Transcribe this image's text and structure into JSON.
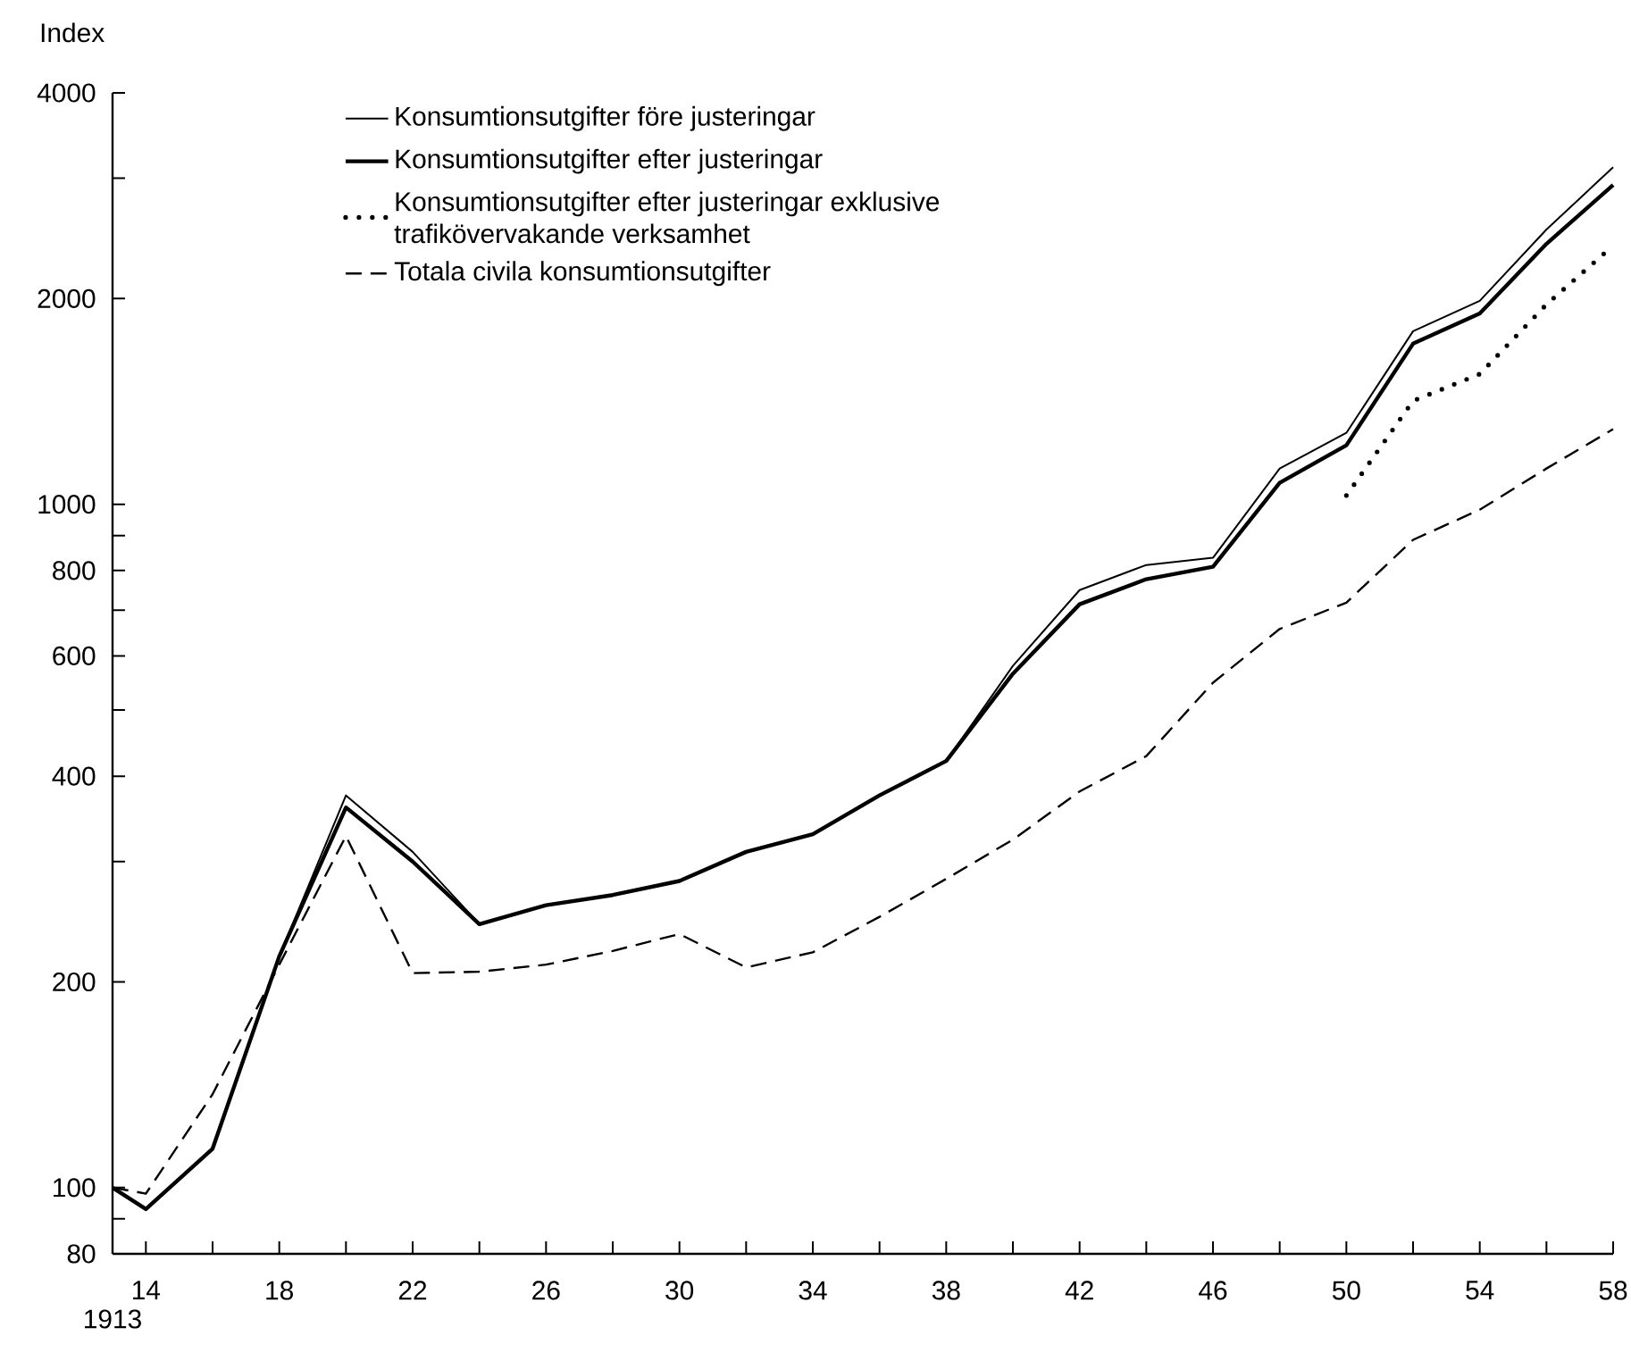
{
  "chart_data": {
    "type": "line",
    "ylabel": "Index",
    "log": "y",
    "legend": "top left",
    "line_style": "solid",
    "x": [
      1913,
      1914,
      1916,
      1918,
      1920,
      1922,
      1924,
      1926,
      1928,
      1930,
      1932,
      1934,
      1936,
      1938,
      1940,
      1942,
      1944,
      1946,
      1948,
      1950,
      1952,
      1954,
      1956,
      1958
    ],
    "xlim": [
      1913,
      1958
    ],
    "ylim": [
      80,
      4000
    ],
    "annotations": [
      "1913"
    ],
    "xticks": [
      {
        "value": 1913,
        "label": null
      },
      {
        "value": 1914,
        "label": "14"
      },
      {
        "value": 1916,
        "label": null
      },
      {
        "value": 1918,
        "label": "18"
      },
      {
        "value": 1920,
        "label": null
      },
      {
        "value": 1922,
        "label": "22"
      },
      {
        "value": 1924,
        "label": null
      },
      {
        "value": 1926,
        "label": "26"
      },
      {
        "value": 1928,
        "label": null
      },
      {
        "value": 1930,
        "label": "30"
      },
      {
        "value": 1932,
        "label": null
      },
      {
        "value": 1934,
        "label": "34"
      },
      {
        "value": 1936,
        "label": null
      },
      {
        "value": 1938,
        "label": "38"
      },
      {
        "value": 1940,
        "label": null
      },
      {
        "value": 1942,
        "label": "42"
      },
      {
        "value": 1944,
        "label": null
      },
      {
        "value": 1946,
        "label": "46"
      },
      {
        "value": 1948,
        "label": null
      },
      {
        "value": 1950,
        "label": "50"
      },
      {
        "value": 1952,
        "label": null
      },
      {
        "value": 1954,
        "label": "54"
      },
      {
        "value": 1956,
        "label": null
      },
      {
        "value": 1958,
        "label": "58"
      }
    ],
    "yticks": [
      80,
      {
        "value": 90,
        "label": null
      },
      100,
      200,
      {
        "value": 300,
        "label": null
      },
      400,
      {
        "value": 500,
        "label": null
      },
      600,
      {
        "value": 700,
        "label": null
      },
      800,
      {
        "value": 900,
        "label": null
      },
      1000,
      2000,
      {
        "value": 3000,
        "label": null
      },
      4000
    ],
    "series": [
      {
        "name": "Konsumtionsutgifter före justeringar",
        "color": "#000000",
        "values": [
          100,
          93,
          114,
          218,
          375,
          310,
          243,
          259,
          268,
          281,
          310,
          329,
          375,
          421,
          580,
          749,
          815,
          835,
          1128,
          1272,
          1792,
          1985,
          2524,
          3114
        ]
      },
      {
        "name": "Konsumtionsutgifter efter justeringar",
        "color": "#000000",
        "values": [
          100,
          93,
          114,
          218,
          360,
          300,
          243,
          259,
          268,
          281,
          310,
          329,
          375,
          421,
          565,
          714,
          777,
          810,
          1075,
          1220,
          1718,
          1902,
          2405,
          2933
        ]
      },
      {
        "name": "Konsumtionsutgifter efter justeringar exklusive trafikövervakande verksamhet",
        "color": "#000000",
        "line_style": "dotted",
        "x": [
          1950,
          1952,
          1954,
          1956,
          1958
        ],
        "values": [
          1030,
          1417,
          1551,
          1961,
          2391
        ]
      },
      {
        "name": "Totala civila konsumtionsutgifter",
        "color": "#000000",
        "line_style": "dashed",
        "values": [
          100,
          98,
          137,
          212,
          327,
          206,
          207,
          212,
          222,
          235,
          210,
          221,
          249,
          283,
          323,
          380,
          428,
          548,
          657,
          718,
          887,
          982,
          1128,
          1288
        ]
      }
    ]
  }
}
